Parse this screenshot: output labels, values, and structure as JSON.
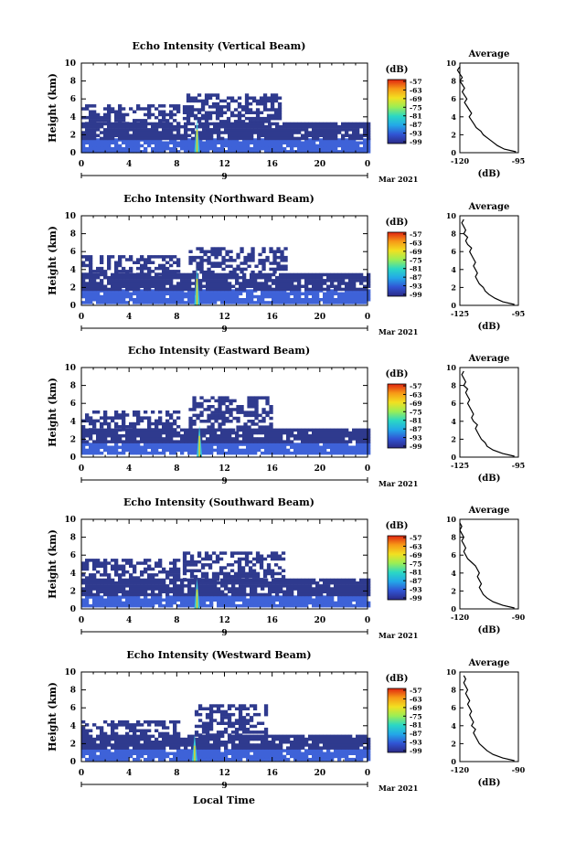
{
  "figure": {
    "xlabel": "Local Time",
    "date_label": "Mar 2021",
    "day_label": "9",
    "height_label": "Height (km)",
    "colorbar_unit": "(dB)",
    "average_title": "Average",
    "average_unit": "(dB)",
    "colors": {
      "background": "#ffffff",
      "echo_base": "#2f3a8e",
      "echo_mid": "#3e62d8",
      "spike_core": "#e7d21a",
      "spike_halo": "#39c6d9",
      "colorbar_stops": [
        "#2b2a86",
        "#3154d4",
        "#23a8e8",
        "#2bd8c4",
        "#9bee55",
        "#f2e020",
        "#f79a16",
        "#e02410"
      ]
    }
  },
  "chart_data": [
    {
      "type": "heatmap",
      "title": "Echo Intensity (Vertical Beam)",
      "ylabel": "Height (km)",
      "xlabel": "",
      "xlim": [
        0,
        24
      ],
      "ylim": [
        0,
        10
      ],
      "x_ticks": [
        "0",
        "4",
        "8",
        "12",
        "16",
        "20",
        "0"
      ],
      "y_ticks": [
        "0",
        "2",
        "4",
        "6",
        "8",
        "10"
      ],
      "colorbar": {
        "unit": "(dB)",
        "ticks": [
          "-57",
          "-63",
          "-69",
          "-75",
          "-81",
          "-87",
          "-93",
          "-99"
        ]
      },
      "echo_layers": [
        {
          "name": "low",
          "x_start": 0,
          "x_end": 24,
          "bottom": 0.2,
          "top": 1.6
        },
        {
          "name": "middle",
          "x_start": 0,
          "x_end": 24,
          "bottom": 1.6,
          "top": 3.4
        },
        {
          "name": "upper",
          "x_start": 0,
          "x_end": 8,
          "bottom": 3.4,
          "top": 5.4
        },
        {
          "name": "upper-convective",
          "x_start": 8.5,
          "x_end": 16.5,
          "bottom": 3.4,
          "top": 6.6
        }
      ],
      "spike": {
        "x": 9.7,
        "top": 3.8
      },
      "profile": {
        "title": "Average",
        "xlabel": "(dB)",
        "xlim": [
          -120,
          -95
        ],
        "ylim": [
          0,
          10
        ],
        "x_ticks": [
          "-120",
          "-95"
        ],
        "y_ticks": [
          "0",
          "2",
          "4",
          "6",
          "8",
          "10"
        ],
        "points": [
          [
            -96,
            0.1
          ],
          [
            -101,
            0.4
          ],
          [
            -104,
            0.8
          ],
          [
            -106,
            1.2
          ],
          [
            -108,
            1.6
          ],
          [
            -110,
            2
          ],
          [
            -111,
            2.4
          ],
          [
            -113,
            2.8
          ],
          [
            -114,
            3.2
          ],
          [
            -115,
            3.6
          ],
          [
            -116,
            4
          ],
          [
            -115,
            4.4
          ],
          [
            -116,
            4.8
          ],
          [
            -117,
            5.2
          ],
          [
            -118,
            5.6
          ],
          [
            -117,
            6
          ],
          [
            -118,
            6.4
          ],
          [
            -119,
            6.8
          ],
          [
            -118,
            7.2
          ],
          [
            -119,
            7.6
          ],
          [
            -120,
            8
          ],
          [
            -119,
            8.4
          ],
          [
            -120,
            8.8
          ],
          [
            -121,
            9.2
          ],
          [
            -120,
            9.6
          ]
        ]
      }
    },
    {
      "type": "heatmap",
      "title": "Echo Intensity (Northward Beam)",
      "ylabel": "Height (km)",
      "xlabel": "",
      "xlim": [
        0,
        24
      ],
      "ylim": [
        0,
        10
      ],
      "x_ticks": [
        "0",
        "4",
        "8",
        "12",
        "16",
        "20",
        "0"
      ],
      "y_ticks": [
        "0",
        "2",
        "4",
        "6",
        "8",
        "10"
      ],
      "colorbar": {
        "unit": "(dB)",
        "ticks": [
          "-57",
          "-63",
          "-69",
          "-75",
          "-81",
          "-87",
          "-93",
          "-99"
        ]
      },
      "echo_layers": [
        {
          "name": "low",
          "x_start": 0,
          "x_end": 24,
          "bottom": 0.3,
          "top": 1.8
        },
        {
          "name": "middle",
          "x_start": 0,
          "x_end": 24,
          "bottom": 1.8,
          "top": 3.6
        },
        {
          "name": "upper",
          "x_start": 0,
          "x_end": 8,
          "bottom": 3.6,
          "top": 5.6
        },
        {
          "name": "upper-convective",
          "x_start": 9,
          "x_end": 17,
          "bottom": 3.6,
          "top": 6.5
        }
      ],
      "spike": {
        "x": 9.7,
        "top": 4.2
      },
      "profile": {
        "title": "Average",
        "xlabel": "(dB)",
        "xlim": [
          -125,
          -95
        ],
        "ylim": [
          0,
          10
        ],
        "x_ticks": [
          "-125",
          "-95"
        ],
        "y_ticks": [
          "0",
          "2",
          "4",
          "6",
          "8",
          "10"
        ],
        "points": [
          [
            -97,
            0.1
          ],
          [
            -103,
            0.4
          ],
          [
            -107,
            0.8
          ],
          [
            -110,
            1.2
          ],
          [
            -112,
            1.6
          ],
          [
            -113,
            2
          ],
          [
            -115,
            2.4
          ],
          [
            -116,
            2.8
          ],
          [
            -117,
            3.2
          ],
          [
            -116,
            3.6
          ],
          [
            -117,
            4
          ],
          [
            -118,
            4.4
          ],
          [
            -117,
            4.8
          ],
          [
            -118,
            5.2
          ],
          [
            -119,
            5.6
          ],
          [
            -120,
            6
          ],
          [
            -119,
            6.4
          ],
          [
            -121,
            6.8
          ],
          [
            -122,
            7.2
          ],
          [
            -121,
            7.6
          ],
          [
            -123,
            8
          ],
          [
            -122,
            8.4
          ],
          [
            -123,
            8.8
          ],
          [
            -124,
            9.2
          ],
          [
            -123,
            9.6
          ]
        ]
      }
    },
    {
      "type": "heatmap",
      "title": "Echo Intensity (Eastward Beam)",
      "ylabel": "Height (km)",
      "xlabel": "",
      "xlim": [
        0,
        24
      ],
      "ylim": [
        0,
        10
      ],
      "x_ticks": [
        "0",
        "4",
        "8",
        "12",
        "16",
        "20",
        "0"
      ],
      "y_ticks": [
        "0",
        "2",
        "4",
        "6",
        "8",
        "10"
      ],
      "colorbar": {
        "unit": "(dB)",
        "ticks": [
          "-57",
          "-63",
          "-69",
          "-75",
          "-81",
          "-87",
          "-93",
          "-99"
        ]
      },
      "echo_layers": [
        {
          "name": "low",
          "x_start": 0,
          "x_end": 24,
          "bottom": 0.3,
          "top": 1.6
        },
        {
          "name": "middle",
          "x_start": 0,
          "x_end": 24,
          "bottom": 1.6,
          "top": 3.2
        },
        {
          "name": "upper",
          "x_start": 0,
          "x_end": 8,
          "bottom": 3.2,
          "top": 5.2
        },
        {
          "name": "upper-convective",
          "x_start": 9,
          "x_end": 16,
          "bottom": 3.2,
          "top": 6.8
        }
      ],
      "spike": {
        "x": 9.9,
        "top": 3.6
      },
      "profile": {
        "title": "Average",
        "xlabel": "(dB)",
        "xlim": [
          -125,
          -95
        ],
        "ylim": [
          0,
          10
        ],
        "x_ticks": [
          "-125",
          "-95"
        ],
        "y_ticks": [
          "0",
          "2",
          "4",
          "6",
          "8",
          "10"
        ],
        "points": [
          [
            -97,
            0.1
          ],
          [
            -103,
            0.4
          ],
          [
            -108,
            0.8
          ],
          [
            -111,
            1.2
          ],
          [
            -112,
            1.6
          ],
          [
            -114,
            2
          ],
          [
            -115,
            2.4
          ],
          [
            -116,
            2.8
          ],
          [
            -117,
            3.2
          ],
          [
            -116,
            3.6
          ],
          [
            -118,
            4
          ],
          [
            -119,
            4.4
          ],
          [
            -118,
            4.8
          ],
          [
            -119,
            5.2
          ],
          [
            -120,
            5.6
          ],
          [
            -121,
            6
          ],
          [
            -120,
            6.4
          ],
          [
            -121,
            6.8
          ],
          [
            -122,
            7.2
          ],
          [
            -121,
            7.6
          ],
          [
            -123,
            8
          ],
          [
            -122,
            8.4
          ],
          [
            -123,
            8.8
          ],
          [
            -124,
            9.2
          ],
          [
            -123,
            9.6
          ]
        ]
      }
    },
    {
      "type": "heatmap",
      "title": "Echo Intensity (Southward Beam)",
      "ylabel": "Height (km)",
      "xlabel": "",
      "xlim": [
        0,
        24
      ],
      "ylim": [
        0,
        10
      ],
      "x_ticks": [
        "0",
        "4",
        "8",
        "12",
        "16",
        "20",
        "0"
      ],
      "y_ticks": [
        "0",
        "2",
        "4",
        "6",
        "8",
        "10"
      ],
      "colorbar": {
        "unit": "(dB)",
        "ticks": [
          "-57",
          "-63",
          "-69",
          "-75",
          "-81",
          "-87",
          "-93",
          "-99"
        ]
      },
      "echo_layers": [
        {
          "name": "low",
          "x_start": 0,
          "x_end": 24,
          "bottom": 0.3,
          "top": 1.5
        },
        {
          "name": "middle",
          "x_start": 0,
          "x_end": 24,
          "bottom": 1.5,
          "top": 3.4
        },
        {
          "name": "upper",
          "x_start": 0,
          "x_end": 8,
          "bottom": 3.4,
          "top": 5.6
        },
        {
          "name": "upper-convective",
          "x_start": 8.5,
          "x_end": 17,
          "bottom": 3.4,
          "top": 6.4
        }
      ],
      "spike": {
        "x": 9.7,
        "top": 3.4
      },
      "profile": {
        "title": "Average",
        "xlabel": "(dB)",
        "xlim": [
          -120,
          -90
        ],
        "ylim": [
          0,
          10
        ],
        "x_ticks": [
          "-120",
          "-90"
        ],
        "y_ticks": [
          "0",
          "2",
          "4",
          "6",
          "8",
          "10"
        ],
        "points": [
          [
            -92,
            0.1
          ],
          [
            -98,
            0.4
          ],
          [
            -103,
            0.8
          ],
          [
            -106,
            1.2
          ],
          [
            -108,
            1.6
          ],
          [
            -109,
            2
          ],
          [
            -110,
            2.4
          ],
          [
            -109,
            2.8
          ],
          [
            -110,
            3.2
          ],
          [
            -111,
            3.6
          ],
          [
            -110,
            4
          ],
          [
            -111,
            4.4
          ],
          [
            -112,
            4.8
          ],
          [
            -114,
            5.2
          ],
          [
            -116,
            5.6
          ],
          [
            -117,
            6
          ],
          [
            -118,
            6.4
          ],
          [
            -117,
            6.8
          ],
          [
            -118,
            7.2
          ],
          [
            -119,
            7.6
          ],
          [
            -118,
            8
          ],
          [
            -119,
            8.4
          ],
          [
            -120,
            8.8
          ],
          [
            -119,
            9.2
          ],
          [
            -120,
            9.6
          ]
        ]
      }
    },
    {
      "type": "heatmap",
      "title": "Echo Intensity (Westward Beam)",
      "ylabel": "Height (km)",
      "xlabel": "Local Time",
      "xlim": [
        0,
        24
      ],
      "ylim": [
        0,
        10
      ],
      "x_ticks": [
        "0",
        "4",
        "8",
        "12",
        "16",
        "20",
        "0"
      ],
      "y_ticks": [
        "0",
        "2",
        "4",
        "6",
        "8",
        "10"
      ],
      "colorbar": {
        "unit": "(dB)",
        "ticks": [
          "-57",
          "-63",
          "-69",
          "-75",
          "-81",
          "-87",
          "-93",
          "-99"
        ]
      },
      "echo_layers": [
        {
          "name": "low",
          "x_start": 0,
          "x_end": 24,
          "bottom": 0.2,
          "top": 1.4
        },
        {
          "name": "middle",
          "x_start": 0,
          "x_end": 24,
          "bottom": 1.4,
          "top": 3.0
        },
        {
          "name": "upper",
          "x_start": 0,
          "x_end": 8,
          "bottom": 3.0,
          "top": 4.6
        },
        {
          "name": "upper-convective",
          "x_start": 9.5,
          "x_end": 15.5,
          "bottom": 3.0,
          "top": 6.4
        }
      ],
      "spike": {
        "x": 9.5,
        "top": 3.0
      },
      "profile": {
        "title": "Average",
        "xlabel": "(dB)",
        "xlim": [
          -120,
          -90
        ],
        "ylim": [
          0,
          10
        ],
        "x_ticks": [
          "-120",
          "-90"
        ],
        "y_ticks": [
          "0",
          "2",
          "4",
          "6",
          "8",
          "10"
        ],
        "points": [
          [
            -92,
            0.1
          ],
          [
            -98,
            0.4
          ],
          [
            -103,
            0.8
          ],
          [
            -106,
            1.2
          ],
          [
            -108,
            1.6
          ],
          [
            -110,
            2
          ],
          [
            -111,
            2.4
          ],
          [
            -112,
            2.8
          ],
          [
            -113,
            3.2
          ],
          [
            -112,
            3.6
          ],
          [
            -114,
            4
          ],
          [
            -113,
            4.4
          ],
          [
            -114,
            4.8
          ],
          [
            -115,
            5.2
          ],
          [
            -114,
            5.6
          ],
          [
            -115,
            6
          ],
          [
            -116,
            6.4
          ],
          [
            -115,
            6.8
          ],
          [
            -116,
            7.2
          ],
          [
            -117,
            7.6
          ],
          [
            -116,
            8
          ],
          [
            -117,
            8.4
          ],
          [
            -118,
            8.8
          ],
          [
            -117,
            9.2
          ],
          [
            -118,
            9.6
          ]
        ]
      }
    }
  ]
}
